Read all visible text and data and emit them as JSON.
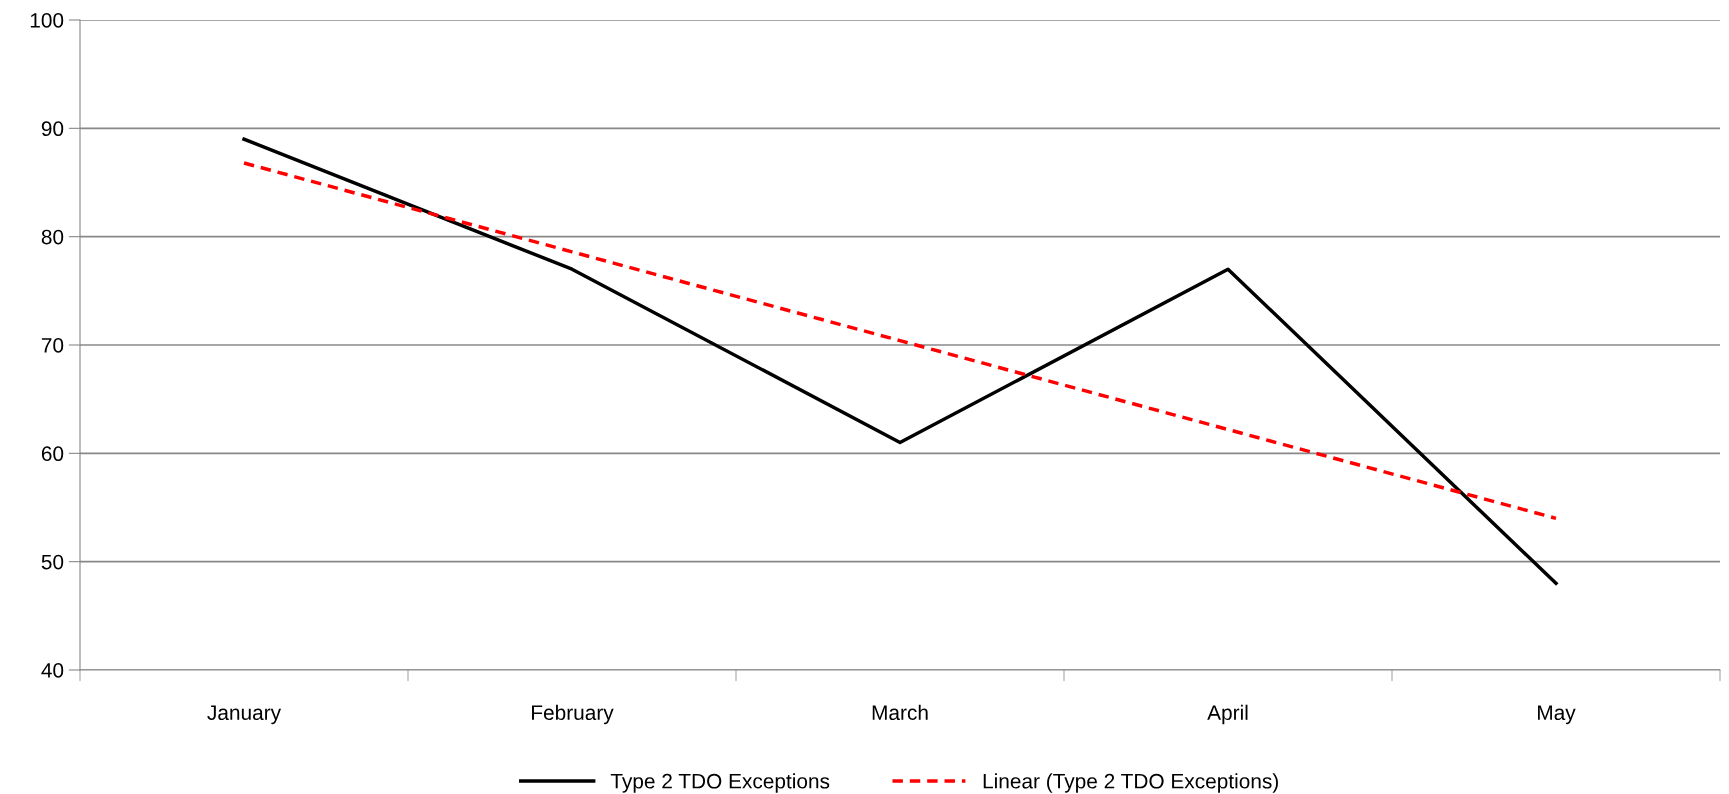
{
  "chart_data": {
    "type": "line",
    "categories": [
      "January",
      "February",
      "March",
      "April",
      "May"
    ],
    "series": [
      {
        "name": "Type 2 TDO Exceptions",
        "color": "#000000",
        "line_style": "solid",
        "values": [
          89,
          77,
          61,
          77,
          48
        ]
      },
      {
        "name": "Linear (Type 2 TDO Exceptions)",
        "color": "#ff0000",
        "line_style": "dashed",
        "values": [
          86.8,
          78.6,
          70.4,
          62.2,
          54.0
        ]
      }
    ],
    "ylim": [
      40,
      100
    ],
    "yticks": [
      40,
      50,
      60,
      70,
      80,
      90,
      100
    ],
    "grid": "y",
    "legend": "bottom",
    "marker": "none"
  }
}
